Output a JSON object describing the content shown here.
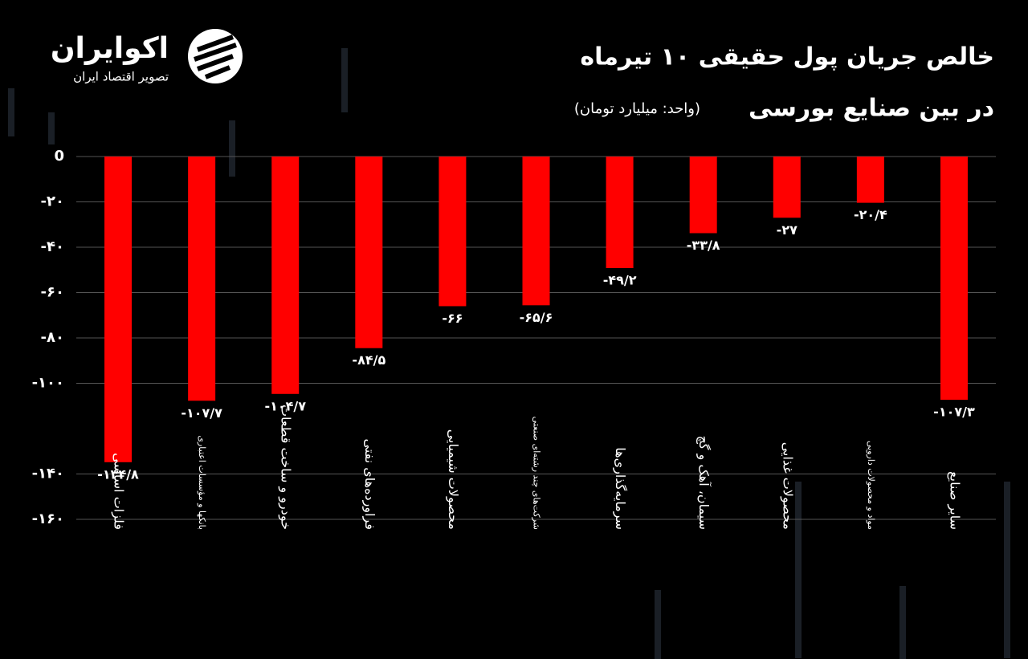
{
  "logo": {
    "name": "اکوایران",
    "tagline": "تصویر اقتصاد ایران"
  },
  "chart_data": {
    "type": "bar",
    "title": "خالص جریان پول حقیقی ۱۰ تیرماه",
    "subtitle": "در بین صنایع بورسی",
    "unit": "(واحد: میلیارد تومان)",
    "categories": [
      "فلزات اساسی",
      "بانکها و مؤسسات اعتباری",
      "خودرو و ساخت قطعات",
      "فراورده‌های نفتی",
      "محصولات شیمیایی",
      "شرکت‌های چند رشته‌ای صنعتی",
      "سرمایه‌گذاری‌ها",
      "سیمان، آهک و گچ",
      "محصولات غذایی",
      "مواد و محصولات دارویی",
      "سایر صنایع"
    ],
    "values": [
      -134.8,
      -107.7,
      -104.7,
      -84.5,
      -66,
      -65.6,
      -49.2,
      -33.8,
      -27,
      -20.4,
      -107.3
    ],
    "value_labels": [
      "-۱۳۴/۸",
      "-۱۰۷/۷",
      "-۱۰۴/۷",
      "-۸۴/۵",
      "-۶۶",
      "-۶۵/۶",
      "-۴۹/۲",
      "-۳۳/۸",
      "-۲۷",
      "-۲۰/۴",
      "-۱۰۷/۳"
    ],
    "color": "#ff0000",
    "ylim": [
      -160,
      0
    ],
    "yticks": [
      0,
      {
        "value": -20,
        "label": "-۲۰"
      },
      {
        "value": -40,
        "label": "-۴۰"
      },
      {
        "value": -60,
        "label": "-۶۰"
      },
      {
        "value": -80,
        "label": "-۸۰"
      },
      {
        "value": -100,
        "label": "-۱۰۰"
      },
      {
        "value": -140,
        "label": "-۱۴۰"
      },
      {
        "value": -160,
        "label": "-۱۶۰"
      }
    ],
    "grid": true
  }
}
